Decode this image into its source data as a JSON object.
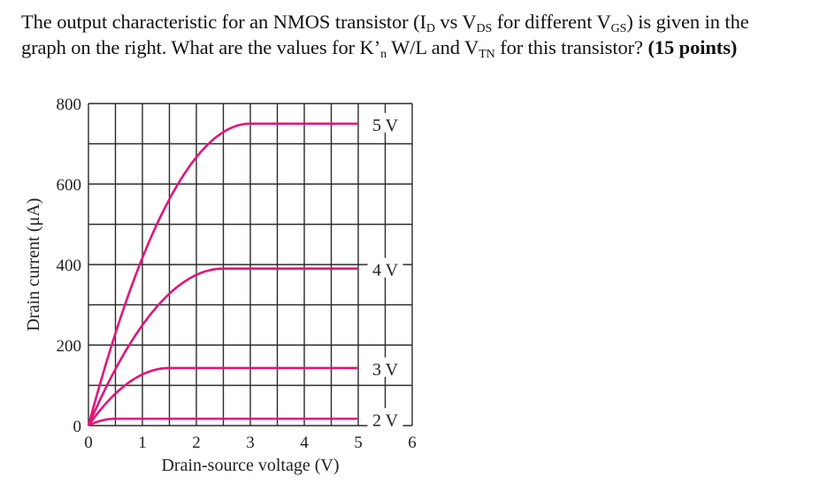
{
  "question": {
    "line1_parts": [
      "The output characteristic for an NMOS transistor (I",
      "D",
      " vs V",
      "DS",
      " for different V",
      "GS",
      ") is given in the"
    ],
    "line2_parts": [
      "graph on the right. What are the values for K’",
      "n",
      " W/L and V",
      "TN",
      " for this transistor? "
    ],
    "points": "(15 points)"
  },
  "chart_data": {
    "type": "line",
    "title": "",
    "xlabel": "Drain-source voltage (V)",
    "ylabel": "Drain current (μA)",
    "xlim": [
      0,
      6
    ],
    "ylim": [
      0,
      800
    ],
    "x_ticks": [
      "0",
      "1",
      "2",
      "3",
      "4",
      "5",
      "6"
    ],
    "y_ticks": [
      "0",
      "200",
      "400",
      "600",
      "800"
    ],
    "grid": true,
    "grid_step_x": 0.5,
    "grid_step_y": 100,
    "line_color": "#e0157a",
    "series": [
      {
        "name": "5 V",
        "vgs": 5,
        "saturation_current": 750,
        "vds_sat": 3.0
      },
      {
        "name": "4 V",
        "vgs": 4,
        "saturation_current": 390,
        "vds_sat": 2.5
      },
      {
        "name": "3 V",
        "vgs": 3,
        "saturation_current": 143,
        "vds_sat": 1.5
      },
      {
        "name": "2 V",
        "vgs": 2,
        "saturation_current": 17,
        "vds_sat": 0.5
      }
    ],
    "curve_end_vds": 5,
    "legend_position": "right, inline labels"
  }
}
